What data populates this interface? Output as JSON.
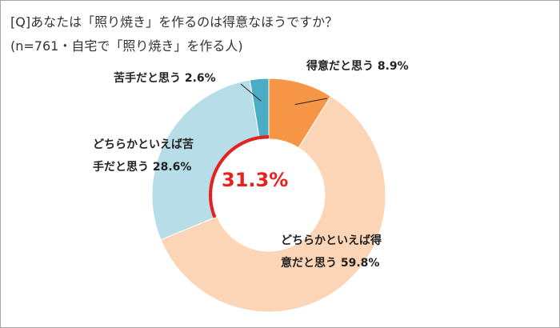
{
  "header": {
    "question": "[Q]あなたは「照り焼き」を作るのは得意なほうですか？",
    "sample": "(n=761・自宅で「照り焼き」を作る人)"
  },
  "chart_data": {
    "type": "donut",
    "categories": [
      "得意だと思う",
      "どちらかといえば得意だと思う",
      "どちらかといえば苦手だと思う",
      "苦手だと思う"
    ],
    "values": [
      8.9,
      59.8,
      28.6,
      2.6
    ],
    "colors": [
      "#f79646",
      "#fbd5b5",
      "#b7dde8",
      "#4bacc6"
    ],
    "labels": [
      [
        "得意だと思う 8.9%"
      ],
      [
        "どちらかといえば得",
        "意だと思う 59.8%"
      ],
      [
        "どちらかといえば苦",
        "手だと思う 28.6%"
      ],
      [
        "苦手だと思う 2.6%"
      ]
    ],
    "highlight": {
      "text": "31.3%",
      "color": "#e8201e"
    }
  }
}
